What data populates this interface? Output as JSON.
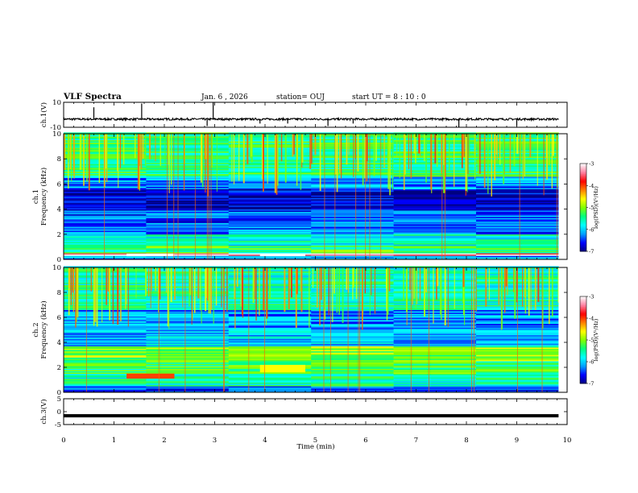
{
  "header": {
    "title": "VLF Spectra",
    "date": "Jan. 6 , 2026",
    "station": "station= OUJ",
    "start": "start UT =  8 : 10 : 0"
  },
  "chart_data": [
    {
      "type": "line",
      "panel": "ch1-waveform",
      "ylabel": "ch.1(V)",
      "ylim": [
        -10,
        10
      ],
      "yticks": [
        "10",
        "-10"
      ],
      "xlim": [
        0,
        10
      ],
      "baseline": -3.5,
      "spikes": [
        {
          "t": 0.6,
          "v": 6
        },
        {
          "t": 1.55,
          "v": 9
        },
        {
          "t": 2.85,
          "v": -9
        },
        {
          "t": 2.97,
          "v": 10
        },
        {
          "t": 3.9,
          "v": -7
        },
        {
          "t": 4.45,
          "v": -7
        },
        {
          "t": 5.25,
          "v": -9
        },
        {
          "t": 5.75,
          "v": -7
        },
        {
          "t": 7.85,
          "v": -10
        },
        {
          "t": 9.0,
          "v": -9
        }
      ]
    },
    {
      "type": "heatmap",
      "panel": "ch1-spectrogram",
      "ylabel": "ch.1\nFrequency (kHz)",
      "ylim": [
        0,
        10
      ],
      "yticks": [
        "0",
        "2",
        "4",
        "6",
        "8",
        "10"
      ],
      "xlim": [
        0,
        10
      ],
      "data_end_min": 9.83,
      "colorbar": {
        "label": "log(PSD)(V²/Hz)",
        "range": [
          -7,
          -3
        ],
        "ticks": [
          "-3",
          "-4",
          "-5",
          "-6",
          "-7"
        ]
      },
      "bands": [
        {
          "f": [
            0.0,
            0.25
          ],
          "level": -6.2
        },
        {
          "f": [
            0.25,
            0.45
          ],
          "level": -3.3
        },
        {
          "f": [
            0.45,
            1.0
          ],
          "level": -5.3
        },
        {
          "f": [
            1.0,
            2.0
          ],
          "level": -5.7
        },
        {
          "f": [
            2.0,
            3.0
          ],
          "level": -6.3
        },
        {
          "f": [
            3.0,
            4.0
          ],
          "level": -6.4
        },
        {
          "f": [
            4.0,
            5.5
          ],
          "level": -6.8
        },
        {
          "f": [
            5.5,
            6.5
          ],
          "level": -6.2
        },
        {
          "f": [
            6.5,
            10.0
          ],
          "level": -5.4
        }
      ],
      "bright_segments": [
        {
          "t": [
            1.25,
            2.2
          ],
          "f": [
            0.25,
            0.45
          ],
          "level": -3.0
        },
        {
          "t": [
            3.9,
            4.8
          ],
          "f": [
            0.25,
            0.45
          ],
          "level": -3.0
        }
      ]
    },
    {
      "type": "heatmap",
      "panel": "ch2-spectrogram",
      "ylabel": "ch.2\nFrequency (kHz)",
      "ylim": [
        0,
        10
      ],
      "yticks": [
        "0",
        "2",
        "4",
        "6",
        "8",
        "10"
      ],
      "xlim": [
        0,
        10
      ],
      "data_end_min": 9.83,
      "colorbar": {
        "label": "log(PSD)(V²/Hz)",
        "range": [
          -7,
          -3
        ],
        "ticks": [
          "-3",
          "-4",
          "-5",
          "-6",
          "-7"
        ]
      },
      "bands": [
        {
          "f": [
            0.0,
            0.5
          ],
          "level": -6.5
        },
        {
          "f": [
            0.5,
            1.5
          ],
          "level": -5.6
        },
        {
          "f": [
            1.5,
            2.5
          ],
          "level": -5.3
        },
        {
          "f": [
            2.5,
            3.7
          ],
          "level": -5.0
        },
        {
          "f": [
            3.7,
            5.0
          ],
          "level": -6.0
        },
        {
          "f": [
            5.0,
            6.5
          ],
          "level": -6.2
        },
        {
          "f": [
            6.5,
            10.0
          ],
          "level": -5.6
        }
      ],
      "bright_segments": [
        {
          "t": [
            1.25,
            2.2
          ],
          "f": [
            1.1,
            1.5
          ],
          "level": -4.0
        },
        {
          "t": [
            3.9,
            4.8
          ],
          "f": [
            1.6,
            2.2
          ],
          "level": -4.6
        }
      ]
    },
    {
      "type": "line",
      "panel": "ch3-waveform",
      "ylabel": "ch.3(V)",
      "ylim": [
        -5,
        5
      ],
      "yticks": [
        "5",
        "0",
        "-5"
      ],
      "xlim": [
        0,
        10
      ],
      "baseline": -1.6,
      "xlabel": "Time (min)",
      "xticks": [
        "0",
        "1",
        "2",
        "3",
        "4",
        "5",
        "6",
        "7",
        "8",
        "9",
        "10"
      ]
    }
  ],
  "colors": {
    "colormap": [
      "#000080",
      "#0000ff",
      "#00a0ff",
      "#00ffff",
      "#00ff80",
      "#80ff00",
      "#ffff00",
      "#ff8000",
      "#ff0000",
      "#ff80a0",
      "#ffffff"
    ]
  }
}
